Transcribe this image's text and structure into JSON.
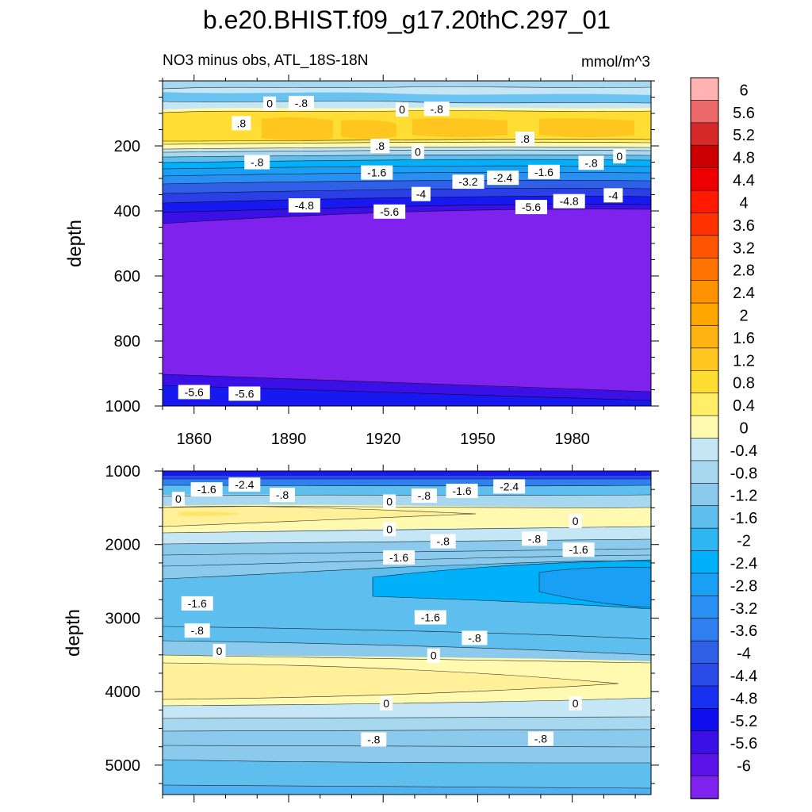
{
  "chart_data": [
    {
      "type": "contour",
      "panel": "upper",
      "title": "b.e20.BHIST.f09_g17.20thC.297_01",
      "left_subtitle": "NO3 minus obs, ATL_18S-18N",
      "right_subtitle": "mmol/m^3",
      "ylabel": "depth",
      "xlabel": "",
      "xlim": [
        1850,
        2005
      ],
      "ylim": [
        0,
        1000
      ],
      "y_reversed": true,
      "x_ticks": [
        "1860",
        "1890",
        "1920",
        "1950",
        "1980"
      ],
      "x_tick_values": [
        1860,
        1890,
        1920,
        1950,
        1980
      ],
      "y_ticks": [
        "200",
        "400",
        "600",
        "800",
        "1000"
      ],
      "y_tick_values": [
        200,
        400,
        600,
        800,
        1000
      ],
      "contour_labels": [
        {
          "text": "0",
          "x": 1884,
          "y": 70
        },
        {
          "text": "-.8",
          "x": 1894,
          "y": 68
        },
        {
          "text": "0",
          "x": 1926,
          "y": 88
        },
        {
          "text": "-.8",
          "x": 1937,
          "y": 86
        },
        {
          "text": ".8",
          "x": 1875,
          "y": 130
        },
        {
          "text": ".8",
          "x": 1919,
          "y": 200
        },
        {
          "text": "0",
          "x": 1931,
          "y": 218
        },
        {
          "text": ".8",
          "x": 1965,
          "y": 178
        },
        {
          "text": "-.8",
          "x": 1880,
          "y": 250
        },
        {
          "text": "-1.6",
          "x": 1918,
          "y": 282
        },
        {
          "text": "-3.2",
          "x": 1947,
          "y": 310
        },
        {
          "text": "-2.4",
          "x": 1958,
          "y": 298
        },
        {
          "text": "-1.6",
          "x": 1971,
          "y": 280
        },
        {
          "text": "-.8",
          "x": 1986,
          "y": 252
        },
        {
          "text": "0",
          "x": 1995,
          "y": 232
        },
        {
          "text": "-4",
          "x": 1932,
          "y": 348
        },
        {
          "text": "-4.8",
          "x": 1895,
          "y": 383
        },
        {
          "text": "-5.6",
          "x": 1922,
          "y": 402
        },
        {
          "text": "-5.6",
          "x": 1967,
          "y": 388
        },
        {
          "text": "-4.8",
          "x": 1979,
          "y": 370
        },
        {
          "text": "-4",
          "x": 1993,
          "y": 352
        },
        {
          "text": "-5.6",
          "x": 1860,
          "y": 957
        },
        {
          "text": "-5.6",
          "x": 1876,
          "y": 962
        }
      ]
    },
    {
      "type": "contour",
      "panel": "lower",
      "ylabel": "depth",
      "xlim": [
        1850,
        2005
      ],
      "ylim": [
        1000,
        5400
      ],
      "y_reversed": true,
      "x_ticks": [
        "1860",
        "1890",
        "1920",
        "1950",
        "1980"
      ],
      "x_tick_values": [
        1860,
        1890,
        1920,
        1950,
        1980
      ],
      "y_ticks": [
        "1000",
        "2000",
        "3000",
        "4000",
        "5000"
      ],
      "y_tick_values": [
        1000,
        2000,
        3000,
        4000,
        5000
      ],
      "contour_labels": [
        {
          "text": "-1.6",
          "x": 1864,
          "y": 1250
        },
        {
          "text": "-2.4",
          "x": 1876,
          "y": 1185
        },
        {
          "text": "0",
          "x": 1855,
          "y": 1380
        },
        {
          "text": "-.8",
          "x": 1888,
          "y": 1325
        },
        {
          "text": "0",
          "x": 1922,
          "y": 1415
        },
        {
          "text": "-.8",
          "x": 1933,
          "y": 1335
        },
        {
          "text": "-1.6",
          "x": 1945,
          "y": 1270
        },
        {
          "text": "-2.4",
          "x": 1960,
          "y": 1210
        },
        {
          "text": "0",
          "x": 1922,
          "y": 1790
        },
        {
          "text": "0",
          "x": 1981,
          "y": 1680
        },
        {
          "text": "-.8",
          "x": 1939,
          "y": 1955
        },
        {
          "text": "-.8",
          "x": 1968,
          "y": 1920
        },
        {
          "text": "-1.6",
          "x": 1982,
          "y": 2070
        },
        {
          "text": "-1.6",
          "x": 1925,
          "y": 2175
        },
        {
          "text": "-1.6",
          "x": 1861,
          "y": 2800
        },
        {
          "text": "-1.6",
          "x": 1935,
          "y": 2990
        },
        {
          "text": "-.8",
          "x": 1861,
          "y": 3170
        },
        {
          "text": "-.8",
          "x": 1949,
          "y": 3270
        },
        {
          "text": "0",
          "x": 1868,
          "y": 3450
        },
        {
          "text": "0",
          "x": 1936,
          "y": 3510
        },
        {
          "text": "0",
          "x": 1921,
          "y": 4160
        },
        {
          "text": "0",
          "x": 1981,
          "y": 4160
        },
        {
          "text": "-.8",
          "x": 1917,
          "y": 4650
        },
        {
          "text": "-.8",
          "x": 1970,
          "y": 4640
        }
      ]
    }
  ],
  "colorbar": {
    "levels": [
      "6",
      "5.6",
      "5.2",
      "4.8",
      "4.4",
      "4",
      "3.6",
      "3.2",
      "2.8",
      "2.4",
      "2",
      "1.6",
      "1.2",
      "0.8",
      "0.4",
      "0",
      "-0.4",
      "-0.8",
      "-1.2",
      "-1.6",
      "-2",
      "-2.4",
      "-2.8",
      "-3.2",
      "-3.6",
      "-4",
      "-4.4",
      "-4.8",
      "-5.2",
      "-5.6",
      "-6"
    ],
    "colors": [
      "#ffb3b3",
      "#ee6a6a",
      "#d62a2a",
      "#cc0000",
      "#ee0000",
      "#ff1a00",
      "#ff3300",
      "#ff5500",
      "#ff7300",
      "#ff9200",
      "#ffa500",
      "#ffb414",
      "#ffc61f",
      "#ffdd33",
      "#ffee66",
      "#fffab0",
      "#c5e6f5",
      "#a8d8f0",
      "#8ccaed",
      "#5ebeee",
      "#2cb5f0",
      "#00b0f8",
      "#19a0f5",
      "#2a8ff2",
      "#2f7ff0",
      "#3060e8",
      "#2a4ae8",
      "#1830f0",
      "#1010ee",
      "#3a10e6",
      "#5a12e8",
      "#7f22ee"
    ]
  },
  "colors": {
    "deep_purple": "#7f22ee",
    "deep_blue": "#1a18f0",
    "yellow": "#ffd633",
    "light_yellow": "#fff7a8",
    "light_blue": "#bfe3f4",
    "mid_blue": "#2eb6f0"
  }
}
